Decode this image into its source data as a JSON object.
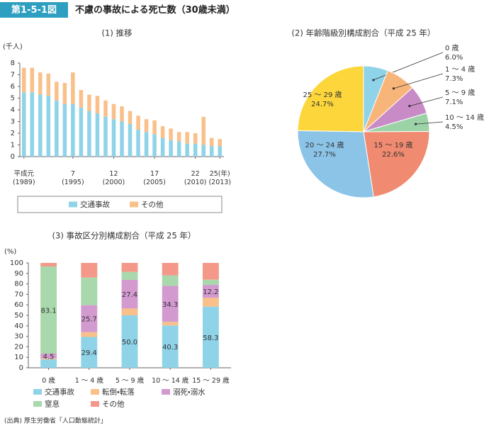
{
  "header": {
    "label": "第1-5-1図",
    "title": "不慮の事故による死亡数（30歳未満）"
  },
  "source": "(出典) 厚生労働省「人口動態統計」",
  "chart_data": [
    {
      "type": "bar",
      "stacked": true,
      "title": "(1) 推移",
      "y_label": "(千人)",
      "categories": [
        "平成元\n(1989)",
        null,
        null,
        null,
        null,
        null,
        "7\n(1995)",
        null,
        null,
        null,
        null,
        "12\n(2000)",
        null,
        null,
        null,
        null,
        "17\n(2005)",
        null,
        null,
        null,
        null,
        "22\n(2010)",
        null,
        null,
        "25(年)\n(2013)"
      ],
      "series": [
        {
          "name": "交通事故",
          "color": "#8fd3e8",
          "values": [
            5.5,
            5.5,
            5.3,
            5.2,
            4.8,
            4.5,
            4.5,
            4.2,
            3.9,
            3.7,
            3.4,
            3.2,
            3.0,
            2.8,
            2.3,
            2.1,
            1.9,
            1.6,
            1.4,
            1.3,
            1.1,
            1.1,
            1.0,
            0.9,
            0.9
          ]
        },
        {
          "name": "その他",
          "color": "#f9c08a",
          "values": [
            2.1,
            2.1,
            1.9,
            1.9,
            1.6,
            1.8,
            2.7,
            1.5,
            1.4,
            1.5,
            1.4,
            1.3,
            1.3,
            1.1,
            1.2,
            1.1,
            1.2,
            1.0,
            1.0,
            0.8,
            1.0,
            0.9,
            2.4,
            0.7,
            0.6
          ]
        }
      ],
      "ylim": [
        0,
        8
      ],
      "yticks": [
        0,
        1,
        2,
        3,
        4,
        5,
        6,
        7,
        8
      ],
      "grid": false,
      "legend": "bottom"
    },
    {
      "type": "pie",
      "title": "(2) 年齢階級別構成割合（平成 25 年）",
      "categories": [
        "0 歳",
        "1 ～ 4 歳",
        "5 ～ 9 歳",
        "10 ～ 14 歳",
        "15 ～ 19 歳",
        "20 ～ 24 歳",
        "25 ～ 29 歳"
      ],
      "values": [
        6,
        7.3,
        7.1,
        4.5,
        22.6,
        27.7,
        24.7
      ],
      "value_labels": [
        "6.0%",
        "7.3%",
        "7.1%",
        "4.5%",
        "22.6%",
        "27.7%",
        "24.7%"
      ],
      "colors": [
        "#8fd3e8",
        "#f8b57a",
        "#c98bc5",
        "#9bd3a6",
        "#f08a70",
        "#8cc4e8",
        "#fcd63b"
      ]
    },
    {
      "type": "bar",
      "stacked": true,
      "title": "(3) 事故区分別構成割合（平成 25 年）",
      "y_label": "(%)",
      "categories": [
        "0 歳",
        "1 ～ 4 歳",
        "5 ～ 9 歳",
        "10 ～ 14 歳",
        "15 ～ 29 歳"
      ],
      "series": [
        {
          "name": "交通事故",
          "color": "#8fd3e8",
          "values": [
            8.0,
            29.4,
            50.0,
            40.3,
            58.3
          ],
          "value_labels": [
            null,
            "29.4",
            "50.0",
            "40.3",
            "58.3"
          ]
        },
        {
          "name": "転倒・転落",
          "color": "#f9c08a",
          "values": [
            1.0,
            4.6,
            6.5,
            3.5,
            8.5
          ],
          "value_labels": [
            null,
            null,
            null,
            null,
            null
          ]
        },
        {
          "name": "溺死・溺水",
          "color": "#d39ad0",
          "values": [
            4.5,
            25.7,
            27.4,
            34.3,
            12.2
          ],
          "value_labels": [
            "4.5",
            "25.7",
            "27.4",
            "34.3",
            "12.2"
          ]
        },
        {
          "name": "窒息",
          "color": "#a8d8ab",
          "values": [
            83.1,
            26.3,
            7.5,
            10.0,
            5.0
          ],
          "value_labels": [
            "83.1",
            null,
            null,
            null,
            null
          ]
        },
        {
          "name": "その他",
          "color": "#f4998a",
          "values": [
            3.4,
            14.0,
            8.6,
            11.9,
            16.0
          ],
          "value_labels": [
            null,
            null,
            null,
            null,
            null
          ]
        }
      ],
      "ylim": [
        0,
        100
      ],
      "yticks": [
        0,
        10,
        20,
        30,
        40,
        50,
        60,
        70,
        80,
        90,
        100
      ],
      "grid": false,
      "legend": "bottom"
    }
  ]
}
